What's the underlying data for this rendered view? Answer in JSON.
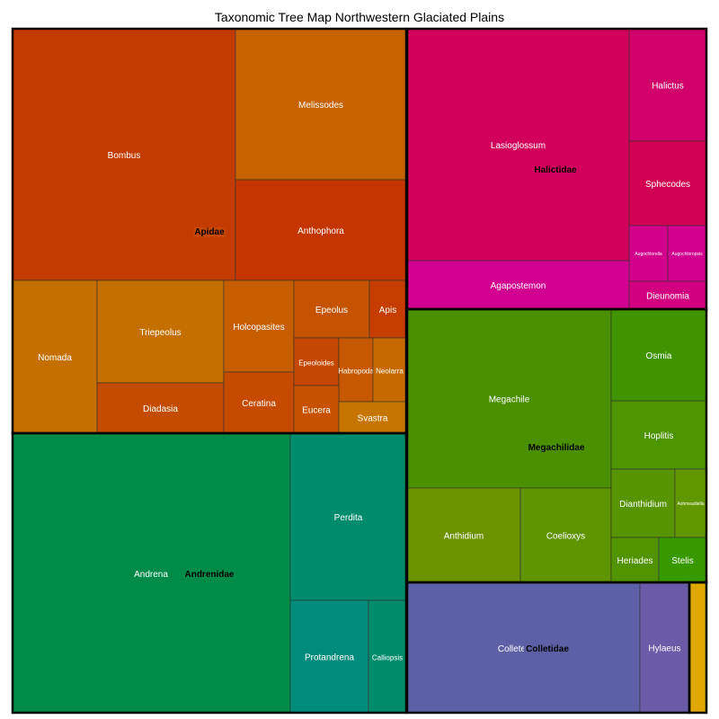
{
  "chart_data": {
    "type": "treemap",
    "title": "Taxonomic Tree Map Northwestern Glaciated Plains",
    "families": [
      {
        "name": "Apidae",
        "color": "#C84A00",
        "genera": [
          {
            "name": "Bombus",
            "color": "#C43B00"
          },
          {
            "name": "Melissodes",
            "color": "#C66200"
          },
          {
            "name": "Anthophora",
            "color": "#C53500"
          },
          {
            "name": "Nomada",
            "color": "#C56F00"
          },
          {
            "name": "Triepeolus",
            "color": "#C46F00"
          },
          {
            "name": "Diadasia",
            "color": "#C44C00"
          },
          {
            "name": "Holcopasites",
            "color": "#C65E00"
          },
          {
            "name": "Ceratina",
            "color": "#C64A00"
          },
          {
            "name": "Epeolus",
            "color": "#C55300"
          },
          {
            "name": "Apis",
            "color": "#C53D00"
          },
          {
            "name": "Epeoloides",
            "color": "#C54700"
          },
          {
            "name": "Habropoda",
            "color": "#C55800"
          },
          {
            "name": "Neolarra",
            "color": "#C66A00"
          },
          {
            "name": "Eucera",
            "color": "#C65200"
          },
          {
            "name": "Svastra",
            "color": "#C67500"
          }
        ]
      },
      {
        "name": "Halictidae",
        "color": "#D20060",
        "genera": [
          {
            "name": "Lasioglossum",
            "color": "#D2005A"
          },
          {
            "name": "Halictus",
            "color": "#D2006A"
          },
          {
            "name": "Sphecodes",
            "color": "#D20050"
          },
          {
            "name": "Augochlorella",
            "color": "#D2008A"
          },
          {
            "name": "Augochloropsis",
            "color": "#D2008E"
          },
          {
            "name": "Agapostemon",
            "color": "#D20090"
          },
          {
            "name": "Dieunomia",
            "color": "#D20080"
          }
        ]
      },
      {
        "name": "Megachilidae",
        "color": "#4A9000",
        "genera": [
          {
            "name": "Megachile",
            "color": "#4A9000"
          },
          {
            "name": "Osmia",
            "color": "#409400"
          },
          {
            "name": "Hoplitis",
            "color": "#4C9400"
          },
          {
            "name": "Anthidium",
            "color": "#6B9400"
          },
          {
            "name": "Coelioxys",
            "color": "#609400"
          },
          {
            "name": "Dianthidium",
            "color": "#569400"
          },
          {
            "name": "Ashmeadiella",
            "color": "#629600"
          },
          {
            "name": "Heriades",
            "color": "#519400"
          },
          {
            "name": "Stelis",
            "color": "#389800"
          }
        ]
      },
      {
        "name": "Andrenidae",
        "color": "#008C4A",
        "genera": [
          {
            "name": "Andrena",
            "color": "#008C48"
          },
          {
            "name": "Perdita",
            "color": "#008C6C"
          },
          {
            "name": "Protandrena",
            "color": "#008C7C"
          },
          {
            "name": "Calliopsis",
            "color": "#008C6A"
          }
        ]
      },
      {
        "name": "Colletidae",
        "color": "#5A60A6",
        "genera": [
          {
            "name": "Colletes",
            "color": "#5C60A6"
          },
          {
            "name": "Hylaeus",
            "color": "#6A5AA8"
          }
        ]
      },
      {
        "name": "",
        "color": "#E0A800",
        "genera": []
      }
    ]
  }
}
